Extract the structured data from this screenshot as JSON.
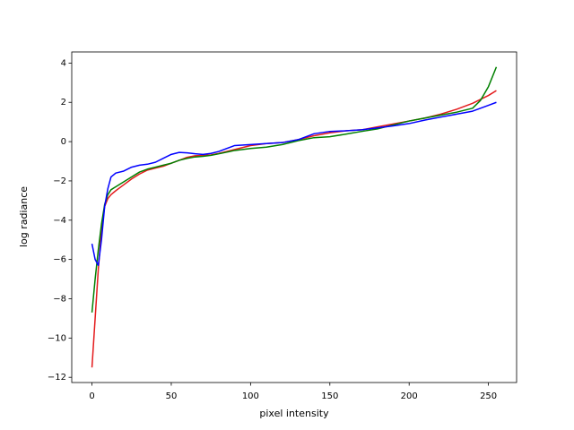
{
  "chart_data": {
    "type": "line",
    "xlabel": "pixel intensity",
    "ylabel": "log radiance",
    "x": [
      0,
      2,
      4,
      6,
      8,
      10,
      12,
      15,
      20,
      25,
      30,
      35,
      40,
      45,
      50,
      55,
      60,
      65,
      70,
      75,
      80,
      90,
      100,
      110,
      120,
      130,
      140,
      150,
      160,
      170,
      180,
      190,
      200,
      210,
      220,
      230,
      240,
      245,
      250,
      255
    ],
    "series": [
      {
        "color": "#e41a1c",
        "css_color": "red",
        "values": [
          -11.5,
          -9,
          -6.5,
          -4.5,
          -3.3,
          -2.9,
          -2.7,
          -2.5,
          -2.2,
          -1.9,
          -1.65,
          -1.45,
          -1.35,
          -1.25,
          -1.1,
          -0.95,
          -0.8,
          -0.72,
          -0.7,
          -0.68,
          -0.6,
          -0.4,
          -0.2,
          -0.1,
          -0.05,
          0.1,
          0.3,
          0.45,
          0.55,
          0.6,
          0.75,
          0.9,
          1.05,
          1.2,
          1.4,
          1.65,
          1.95,
          2.15,
          2.35,
          2.6
        ]
      },
      {
        "color": "green",
        "values": [
          -8.7,
          -7,
          -5.5,
          -4.2,
          -3.2,
          -2.7,
          -2.45,
          -2.3,
          -2.05,
          -1.8,
          -1.55,
          -1.4,
          -1.3,
          -1.2,
          -1.1,
          -0.95,
          -0.85,
          -0.78,
          -0.75,
          -0.7,
          -0.62,
          -0.45,
          -0.35,
          -0.28,
          -0.15,
          0.05,
          0.2,
          0.25,
          0.38,
          0.52,
          0.65,
          0.85,
          1.05,
          1.2,
          1.35,
          1.5,
          1.7,
          2.1,
          2.8,
          3.8
        ]
      },
      {
        "color": "blue",
        "values": [
          -5.2,
          -6,
          -6.3,
          -5,
          -3.3,
          -2.4,
          -1.8,
          -1.6,
          -1.5,
          -1.3,
          -1.2,
          -1.15,
          -1.05,
          -0.85,
          -0.65,
          -0.55,
          -0.57,
          -0.62,
          -0.65,
          -0.6,
          -0.5,
          -0.2,
          -0.15,
          -0.1,
          -0.05,
          0.1,
          0.4,
          0.52,
          0.55,
          0.6,
          0.7,
          0.8,
          0.92,
          1.1,
          1.25,
          1.4,
          1.55,
          1.7,
          1.85,
          2.0
        ]
      }
    ],
    "xlim": [
      -12.75,
      267.75
    ],
    "ylim": [
      -12.265,
      4.565
    ],
    "xticks": [
      0,
      50,
      100,
      150,
      200,
      250
    ],
    "yticks": [
      {
        "value": -12,
        "label": "−12"
      },
      {
        "value": -10,
        "label": "−10"
      },
      {
        "value": -8,
        "label": "−8"
      },
      {
        "value": -6,
        "label": "−6"
      },
      {
        "value": -4,
        "label": "−4"
      },
      {
        "value": -2,
        "label": "−2"
      },
      0,
      2,
      4
    ],
    "grid": false
  }
}
